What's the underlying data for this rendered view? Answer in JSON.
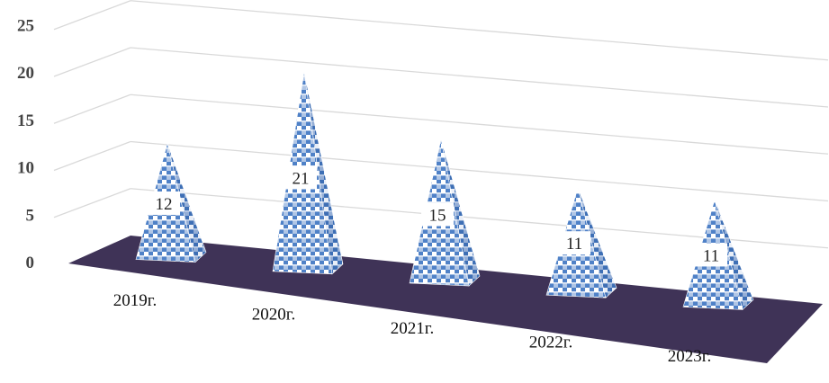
{
  "chart_data": {
    "type": "bar",
    "subtype": "3d-pyramid",
    "categories": [
      "2019г.",
      "2020г.",
      "2021г.",
      "2022г.",
      "2023г."
    ],
    "values": [
      12,
      21,
      15,
      11,
      11
    ],
    "data_labels": [
      "12",
      "21",
      "15",
      "11",
      "11"
    ],
    "title": "",
    "xlabel": "",
    "ylabel": "",
    "ylim": [
      0,
      25
    ],
    "yticks": [
      "0",
      "5",
      "10",
      "15",
      "20",
      "25"
    ],
    "grid": true,
    "legend": "none",
    "colors": {
      "fill": "#4f81c7",
      "pattern_light": "#ffffff",
      "floor": "#3f3357",
      "grid": "#d9d9d9",
      "labels": "#444444"
    }
  }
}
